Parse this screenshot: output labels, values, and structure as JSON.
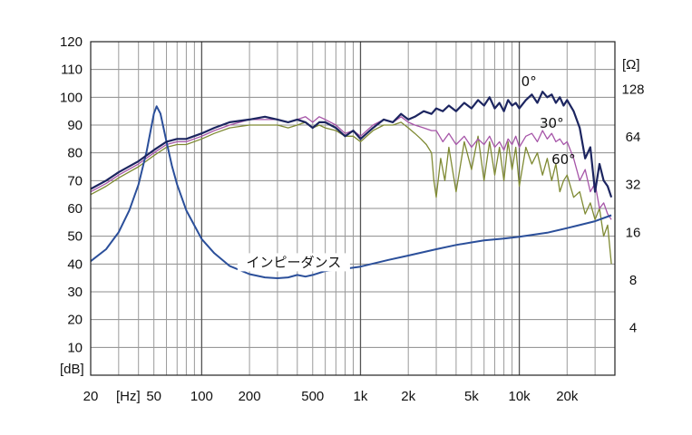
{
  "chart_data": {
    "type": "line",
    "title": "",
    "x_scale": "log",
    "xlim": [
      20,
      40000
    ],
    "ylim": [
      0,
      120
    ],
    "yunit_label": "[dB]",
    "xunit_label": "[Hz]",
    "y2unit_label": "[Ω]",
    "y2_scale": "log",
    "y2lim": [
      2,
      256
    ],
    "grid": true,
    "x_ticks": [
      {
        "value": 20,
        "label": "20"
      },
      {
        "value": 50,
        "label": "50"
      },
      {
        "value": 100,
        "label": "100"
      },
      {
        "value": 200,
        "label": "200"
      },
      {
        "value": 500,
        "label": "500"
      },
      {
        "value": 1000,
        "label": "1k"
      },
      {
        "value": 2000,
        "label": "2k"
      },
      {
        "value": 5000,
        "label": "5k"
      },
      {
        "value": 10000,
        "label": "10k"
      },
      {
        "value": 20000,
        "label": "20k"
      }
    ],
    "y_ticks": [
      10,
      20,
      30,
      40,
      50,
      60,
      70,
      80,
      90,
      100,
      110,
      120
    ],
    "y2_ticks": [
      {
        "value": 4,
        "label": "4"
      },
      {
        "value": 8,
        "label": "8"
      },
      {
        "value": 16,
        "label": "16"
      },
      {
        "value": 32,
        "label": "32"
      },
      {
        "value": 64,
        "label": "64"
      },
      {
        "value": 128,
        "label": "128"
      }
    ],
    "series": [
      {
        "name": "0°",
        "color": "#1c2560",
        "axis": "left",
        "x": [
          20,
          25,
          30,
          40,
          50,
          60,
          70,
          80,
          100,
          120,
          150,
          200,
          250,
          300,
          350,
          400,
          450,
          500,
          550,
          600,
          700,
          800,
          900,
          1000,
          1200,
          1400,
          1600,
          1800,
          2000,
          2200,
          2500,
          2800,
          3000,
          3300,
          3600,
          4000,
          4500,
          5000,
          5500,
          6000,
          6500,
          7000,
          7500,
          8000,
          8500,
          9000,
          9500,
          10000,
          11000,
          12000,
          13000,
          14000,
          15000,
          16000,
          17000,
          18000,
          19000,
          20000,
          22000,
          24000,
          26000,
          28000,
          30000,
          32000,
          34000,
          36000,
          38000
        ],
        "values": [
          67,
          70,
          73,
          77,
          81,
          84,
          85,
          85,
          87,
          89,
          91,
          92,
          93,
          92,
          91,
          92,
          91,
          89,
          91,
          91,
          89,
          86,
          88,
          85,
          89,
          92,
          91,
          94,
          92,
          93,
          95,
          94,
          96,
          95,
          97,
          95,
          98,
          96,
          99,
          97,
          100,
          96,
          98,
          95,
          99,
          97,
          98,
          96,
          99,
          101,
          98,
          102,
          100,
          101,
          98,
          100,
          97,
          99,
          95,
          89,
          78,
          82,
          66,
          76,
          70,
          68,
          64
        ]
      },
      {
        "name": "30°",
        "color": "#a655a8",
        "axis": "left",
        "x": [
          20,
          25,
          30,
          40,
          50,
          60,
          70,
          80,
          100,
          120,
          150,
          200,
          250,
          300,
          350,
          400,
          450,
          500,
          550,
          600,
          700,
          800,
          900,
          1000,
          1200,
          1400,
          1600,
          1800,
          2000,
          2200,
          2500,
          2800,
          3000,
          3300,
          3600,
          4000,
          4500,
          5000,
          5500,
          6000,
          6500,
          7000,
          7500,
          8000,
          8500,
          9000,
          9500,
          10000,
          11000,
          12000,
          13000,
          14000,
          15000,
          16000,
          17000,
          18000,
          19000,
          20000,
          22000,
          24000,
          26000,
          28000,
          30000,
          32000,
          34000,
          36000,
          38000
        ],
        "values": [
          66,
          69,
          72,
          76,
          80,
          83,
          84,
          84,
          86,
          88,
          90,
          92,
          92,
          92,
          91,
          92,
          93,
          91,
          93,
          92,
          90,
          87,
          88,
          86,
          90,
          92,
          91,
          93,
          91,
          90,
          89,
          88,
          88,
          84,
          87,
          83,
          86,
          82,
          85,
          83,
          86,
          82,
          84,
          81,
          85,
          83,
          86,
          82,
          86,
          87,
          84,
          88,
          85,
          87,
          84,
          85,
          83,
          84,
          78,
          70,
          74,
          66,
          69,
          60,
          62,
          58,
          56
        ]
      },
      {
        "name": "60°",
        "color": "#7f8a33",
        "axis": "left",
        "x": [
          20,
          25,
          30,
          40,
          50,
          60,
          70,
          80,
          100,
          120,
          150,
          200,
          250,
          300,
          350,
          400,
          450,
          500,
          550,
          600,
          700,
          800,
          900,
          1000,
          1200,
          1400,
          1600,
          1800,
          2000,
          2200,
          2400,
          2600,
          2800,
          2900,
          3000,
          3200,
          3400,
          3600,
          4000,
          4500,
          5000,
          5500,
          6000,
          6500,
          7000,
          7500,
          8000,
          8500,
          9000,
          9500,
          10000,
          11000,
          12000,
          13000,
          14000,
          15000,
          16000,
          17000,
          18000,
          19000,
          20000,
          22000,
          24000,
          26000,
          28000,
          30000,
          32000,
          34000,
          36000,
          38000
        ],
        "values": [
          65,
          68,
          71,
          75,
          79,
          82,
          83,
          83,
          85,
          87,
          89,
          90,
          90,
          90,
          89,
          90,
          91,
          89,
          90,
          89,
          88,
          86,
          86,
          84,
          88,
          90,
          90,
          91,
          89,
          87,
          85,
          83,
          80,
          70,
          64,
          78,
          70,
          82,
          66,
          84,
          74,
          86,
          70,
          84,
          72,
          82,
          70,
          84,
          74,
          82,
          68,
          82,
          76,
          80,
          72,
          78,
          70,
          76,
          66,
          70,
          72,
          64,
          66,
          58,
          62,
          56,
          60,
          50,
          54,
          40
        ]
      },
      {
        "name": "インピーダンス",
        "color": "#2b4f9a",
        "axis": "right",
        "x": [
          20,
          25,
          30,
          35,
          40,
          45,
          50,
          52,
          55,
          60,
          65,
          70,
          80,
          100,
          120,
          150,
          200,
          250,
          300,
          350,
          400,
          450,
          500,
          600,
          700,
          800,
          1000,
          1500,
          2000,
          3000,
          4000,
          5000,
          6000,
          8000,
          10000,
          15000,
          20000,
          30000,
          38000
        ],
        "values": [
          10.5,
          12.5,
          16.0,
          22.0,
          32.0,
          52.0,
          90.0,
          100.0,
          90.0,
          60.0,
          42.0,
          32.0,
          22.0,
          14.5,
          11.8,
          9.8,
          8.7,
          8.3,
          8.2,
          8.3,
          8.6,
          8.4,
          8.6,
          9.1,
          9.3,
          9.4,
          9.7,
          10.7,
          11.4,
          12.5,
          13.3,
          13.8,
          14.2,
          14.6,
          15.0,
          15.9,
          17.0,
          18.8,
          20.5
        ]
      }
    ],
    "annotations": [
      {
        "text": "0°",
        "x": 11500,
        "y": 104
      },
      {
        "text": "30°",
        "x": 16000,
        "y": 89
      },
      {
        "text": "60°",
        "x": 19000,
        "y": 76
      },
      {
        "text": "インピーダンス",
        "x": 380,
        "y": 39
      }
    ]
  }
}
